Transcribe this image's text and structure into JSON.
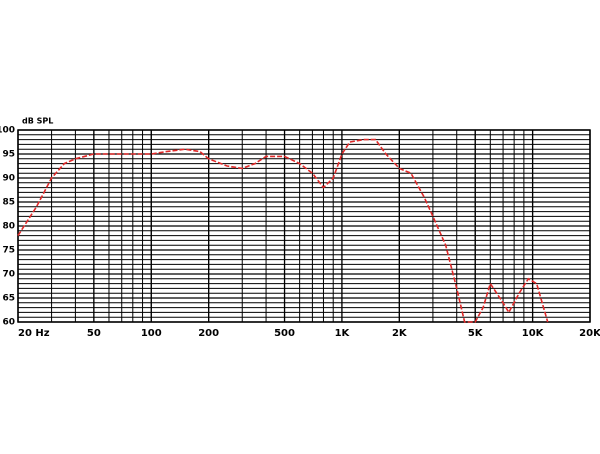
{
  "chart_data": {
    "type": "line",
    "ylabel": "dB SPL",
    "xlog": true,
    "grid": true,
    "xlim": [
      20,
      20000
    ],
    "ylim": [
      60,
      100
    ],
    "xticks": [
      {
        "value": 20,
        "label": "20 Hz"
      },
      50,
      100,
      200,
      500,
      {
        "value": 1000,
        "label": "1K"
      },
      {
        "value": 2000,
        "label": "2K"
      },
      {
        "value": 5000,
        "label": "5K"
      },
      {
        "value": 10000,
        "label": "10K"
      },
      {
        "value": 20000,
        "label": "20K"
      }
    ],
    "yticks": [
      60,
      65,
      70,
      75,
      80,
      85,
      90,
      95,
      100
    ],
    "series": [
      {
        "color": "#e02a2a",
        "x": [
          20,
          25,
          30,
          35,
          40,
          50,
          60,
          80,
          100,
          120,
          150,
          180,
          200,
          250,
          300,
          350,
          400,
          500,
          600,
          700,
          800,
          900,
          1000,
          1100,
          1300,
          1500,
          1700,
          2000,
          2300,
          2700,
          3000,
          3500,
          4000,
          4400,
          5000,
          5500,
          6000,
          7000,
          7500,
          8500,
          9500,
          10500,
          12000
        ],
        "values": [
          78,
          84,
          90,
          93,
          94,
          95,
          95,
          95,
          95,
          95.5,
          96,
          95.5,
          94,
          92.5,
          92,
          93,
          94.5,
          94.5,
          93,
          91,
          88,
          90,
          95,
          97.5,
          98,
          98,
          95,
          92,
          91,
          86,
          82,
          76,
          67,
          60,
          60,
          63,
          68,
          64,
          62,
          66,
          69,
          68,
          60
        ]
      }
    ]
  }
}
